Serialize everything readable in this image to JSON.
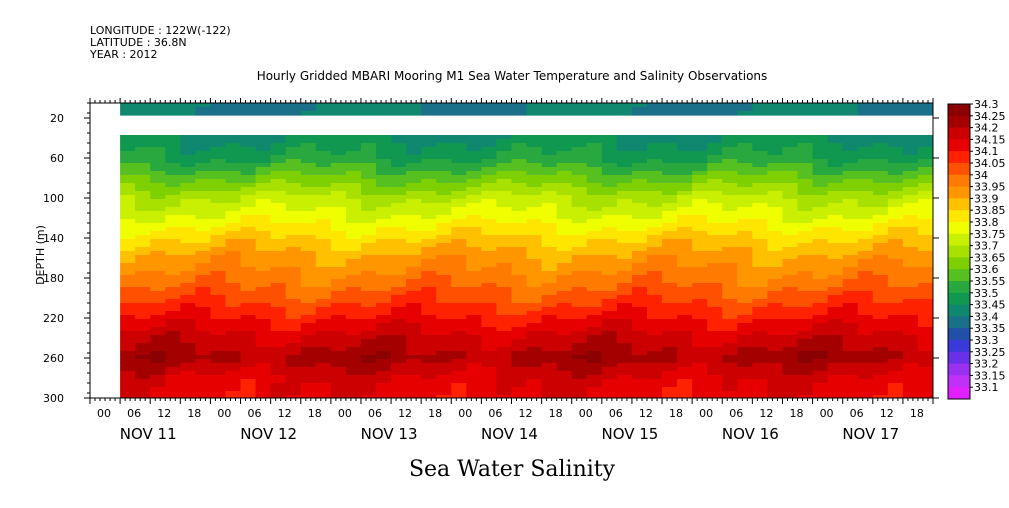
{
  "header": {
    "longitude": "LONGITUDE : 122W(-122)",
    "latitude": "LATITUDE : 36.8N",
    "year": "YEAR : 2012"
  },
  "chart_data": {
    "type": "heatmap",
    "title": "Hourly Gridded MBARI Mooring M1 Sea Water Temperature and Salinity Observations",
    "subtitle": "Sea Water Salinity",
    "xlabel": "",
    "ylabel": "DEPTH (m)",
    "ylim": [
      300,
      5
    ],
    "y_reversed": true,
    "y_ticks": [
      20,
      60,
      100,
      140,
      180,
      220,
      260,
      300
    ],
    "x_hour_labels": [
      "00",
      "06",
      "12",
      "18",
      "00",
      "06",
      "12",
      "18",
      "00",
      "06",
      "12",
      "18",
      "00",
      "06",
      "12",
      "18",
      "00",
      "06",
      "12",
      "18",
      "00",
      "06",
      "12",
      "18",
      "00",
      "06",
      "12",
      "18"
    ],
    "x_day_labels": [
      "NOV 11",
      "NOV 12",
      "NOV 13",
      "NOV 14",
      "NOV 15",
      "NOV 16",
      "NOV 17"
    ],
    "time_range_hours": [
      0,
      168
    ],
    "data_start_hour": 6,
    "colorbar": {
      "levels": [
        "34.3",
        "34.25",
        "34.2",
        "34.15",
        "34.1",
        "34.05",
        "34",
        "33.95",
        "33.9",
        "33.85",
        "33.8",
        "33.75",
        "33.7",
        "33.65",
        "33.6",
        "33.55",
        "33.5",
        "33.45",
        "33.4",
        "33.35",
        "33.3",
        "33.25",
        "33.2",
        "33.15",
        "33.1"
      ],
      "colors": [
        "#8b0000",
        "#a50000",
        "#cc0000",
        "#e60000",
        "#ff2200",
        "#ff5000",
        "#ff7a00",
        "#ff9600",
        "#ffc000",
        "#ffe600",
        "#f0ff00",
        "#c8f000",
        "#a8e000",
        "#7ed000",
        "#56c020",
        "#2aa840",
        "#109850",
        "#108870",
        "#1a7088",
        "#2050a8",
        "#3a3ad8",
        "#6a30e8",
        "#9a30f0",
        "#c030f8",
        "#e020ff"
      ]
    },
    "depth_profile": [
      {
        "depth": 10,
        "salinity": 33.45
      },
      {
        "depth": 40,
        "salinity": 33.5
      },
      {
        "depth": 60,
        "salinity": 33.55
      },
      {
        "depth": 80,
        "salinity": 33.65
      },
      {
        "depth": 100,
        "salinity": 33.75
      },
      {
        "depth": 120,
        "salinity": 33.82
      },
      {
        "depth": 140,
        "salinity": 33.9
      },
      {
        "depth": 160,
        "salinity": 33.97
      },
      {
        "depth": 180,
        "salinity": 34.02
      },
      {
        "depth": 200,
        "salinity": 34.08
      },
      {
        "depth": 220,
        "salinity": 34.15
      },
      {
        "depth": 240,
        "salinity": 34.22
      },
      {
        "depth": 260,
        "salinity": 34.27
      },
      {
        "depth": 280,
        "salinity": 34.2
      },
      {
        "depth": 300,
        "salinity": 34.18
      }
    ],
    "data_gap_depths": [
      15,
      36
    ],
    "gap_until_hour": 6
  },
  "footer_label": "Sea Water Salinity"
}
